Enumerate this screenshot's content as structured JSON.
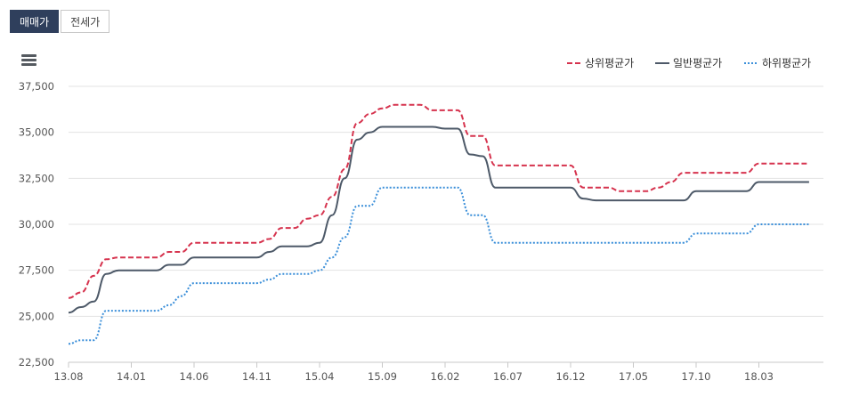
{
  "tabs": [
    {
      "label": "매매가",
      "active": true
    },
    {
      "label": "전세가",
      "active": false
    }
  ],
  "menu": {
    "icon": "hamburger-menu-icon"
  },
  "chart_data": {
    "type": "line",
    "x_tick_labels": [
      "13.08",
      "14.01",
      "14.06",
      "14.11",
      "15.04",
      "15.09",
      "16.02",
      "16.07",
      "16.12",
      "17.05",
      "17.10",
      "18.03"
    ],
    "ylim": [
      22500,
      37500
    ],
    "y_ticks": [
      22500,
      25000,
      27500,
      30000,
      32500,
      35000,
      37500
    ],
    "y_tick_labels": [
      "22,500",
      "25,000",
      "27,500",
      "30,000",
      "32,500",
      "35,000",
      "37,500"
    ],
    "grid": true,
    "legend_position": "top-right",
    "series": [
      {
        "name": "상위평균가",
        "color": "#d6334e",
        "dash": "dashed",
        "x": [
          "2013-08",
          "2013-09",
          "2013-10",
          "2013-11",
          "2013-12",
          "2014-01",
          "2014-02",
          "2014-03",
          "2014-04",
          "2014-05",
          "2014-06",
          "2014-07",
          "2014-08",
          "2014-09",
          "2014-10",
          "2014-11",
          "2014-12",
          "2015-01",
          "2015-02",
          "2015-03",
          "2015-04",
          "2015-05",
          "2015-06",
          "2015-07",
          "2015-08",
          "2015-09",
          "2015-10",
          "2015-11",
          "2015-12",
          "2016-01",
          "2016-02",
          "2016-03",
          "2016-04",
          "2016-05",
          "2016-06",
          "2016-07",
          "2016-08",
          "2016-09",
          "2016-10",
          "2016-11",
          "2016-12",
          "2017-01",
          "2017-02",
          "2017-03",
          "2017-04",
          "2017-05",
          "2017-06",
          "2017-07",
          "2017-08",
          "2017-09",
          "2017-10",
          "2017-11",
          "2017-12",
          "2018-01",
          "2018-02",
          "2018-03",
          "2018-04",
          "2018-05",
          "2018-06",
          "2018-07"
        ],
        "values": [
          26000,
          26300,
          27200,
          28100,
          28200,
          28200,
          28200,
          28200,
          28500,
          28500,
          29000,
          29000,
          29000,
          29000,
          29000,
          29000,
          29200,
          29800,
          29800,
          30300,
          30500,
          31500,
          33000,
          35500,
          36000,
          36300,
          36500,
          36500,
          36500,
          36200,
          36200,
          36200,
          34800,
          34800,
          33200,
          33200,
          33200,
          33200,
          33200,
          33200,
          33200,
          32000,
          32000,
          32000,
          31800,
          31800,
          31800,
          32000,
          32300,
          32800,
          32800,
          32800,
          32800,
          32800,
          32800,
          33300,
          33300,
          33300,
          33300,
          33300
        ]
      },
      {
        "name": "일반평균가",
        "color": "#4d5968",
        "dash": "solid",
        "x": [
          "2013-08",
          "2013-09",
          "2013-10",
          "2013-11",
          "2013-12",
          "2014-01",
          "2014-02",
          "2014-03",
          "2014-04",
          "2014-05",
          "2014-06",
          "2014-07",
          "2014-08",
          "2014-09",
          "2014-10",
          "2014-11",
          "2014-12",
          "2015-01",
          "2015-02",
          "2015-03",
          "2015-04",
          "2015-05",
          "2015-06",
          "2015-07",
          "2015-08",
          "2015-09",
          "2015-10",
          "2015-11",
          "2015-12",
          "2016-01",
          "2016-02",
          "2016-03",
          "2016-04",
          "2016-05",
          "2016-06",
          "2016-07",
          "2016-08",
          "2016-09",
          "2016-10",
          "2016-11",
          "2016-12",
          "2017-01",
          "2017-02",
          "2017-03",
          "2017-04",
          "2017-05",
          "2017-06",
          "2017-07",
          "2017-08",
          "2017-09",
          "2017-10",
          "2017-11",
          "2017-12",
          "2018-01",
          "2018-02",
          "2018-03",
          "2018-04",
          "2018-05",
          "2018-06",
          "2018-07"
        ],
        "values": [
          25200,
          25500,
          25800,
          27300,
          27500,
          27500,
          27500,
          27500,
          27800,
          27800,
          28200,
          28200,
          28200,
          28200,
          28200,
          28200,
          28500,
          28800,
          28800,
          28800,
          29000,
          30500,
          32500,
          34600,
          35000,
          35300,
          35300,
          35300,
          35300,
          35300,
          35200,
          35200,
          33800,
          33700,
          32000,
          32000,
          32000,
          32000,
          32000,
          32000,
          32000,
          31400,
          31300,
          31300,
          31300,
          31300,
          31300,
          31300,
          31300,
          31300,
          31800,
          31800,
          31800,
          31800,
          31800,
          32300,
          32300,
          32300,
          32300,
          32300
        ]
      },
      {
        "name": "하위평균가",
        "color": "#3b8fd9",
        "dash": "dotted",
        "x": [
          "2013-08",
          "2013-09",
          "2013-10",
          "2013-11",
          "2013-12",
          "2014-01",
          "2014-02",
          "2014-03",
          "2014-04",
          "2014-05",
          "2014-06",
          "2014-07",
          "2014-08",
          "2014-09",
          "2014-10",
          "2014-11",
          "2014-12",
          "2015-01",
          "2015-02",
          "2015-03",
          "2015-04",
          "2015-05",
          "2015-06",
          "2015-07",
          "2015-08",
          "2015-09",
          "2015-10",
          "2015-11",
          "2015-12",
          "2016-01",
          "2016-02",
          "2016-03",
          "2016-04",
          "2016-05",
          "2016-06",
          "2016-07",
          "2016-08",
          "2016-09",
          "2016-10",
          "2016-11",
          "2016-12",
          "2017-01",
          "2017-02",
          "2017-03",
          "2017-04",
          "2017-05",
          "2017-06",
          "2017-07",
          "2017-08",
          "2017-09",
          "2017-10",
          "2017-11",
          "2017-12",
          "2018-01",
          "2018-02",
          "2018-03",
          "2018-04",
          "2018-05",
          "2018-06",
          "2018-07"
        ],
        "values": [
          23500,
          23700,
          23700,
          25300,
          25300,
          25300,
          25300,
          25300,
          25600,
          26100,
          26800,
          26800,
          26800,
          26800,
          26800,
          26800,
          27000,
          27300,
          27300,
          27300,
          27500,
          28200,
          29300,
          31000,
          31000,
          32000,
          32000,
          32000,
          32000,
          32000,
          32000,
          32000,
          30500,
          30500,
          29000,
          29000,
          29000,
          29000,
          29000,
          29000,
          29000,
          29000,
          29000,
          29000,
          29000,
          29000,
          29000,
          29000,
          29000,
          29000,
          29500,
          29500,
          29500,
          29500,
          29500,
          30000,
          30000,
          30000,
          30000,
          30000
        ]
      }
    ]
  }
}
